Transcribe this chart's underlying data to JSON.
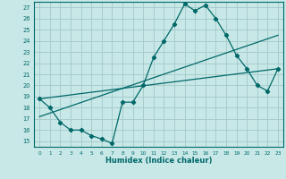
{
  "xlabel": "Humidex (Indice chaleur)",
  "bg_color": "#c8e8e8",
  "grid_color": "#a8cccc",
  "line_color": "#006868",
  "xlim": [
    -0.5,
    23.5
  ],
  "ylim": [
    14.5,
    27.5
  ],
  "xticks": [
    0,
    1,
    2,
    3,
    4,
    5,
    6,
    7,
    8,
    9,
    10,
    11,
    12,
    13,
    14,
    15,
    16,
    17,
    18,
    19,
    20,
    21,
    22,
    23
  ],
  "yticks": [
    15,
    16,
    17,
    18,
    19,
    20,
    21,
    22,
    23,
    24,
    25,
    26,
    27
  ],
  "line1_x": [
    0,
    1,
    2,
    3,
    4,
    5,
    6,
    7,
    8,
    9,
    10,
    11,
    12,
    13,
    14,
    15,
    16,
    17,
    18,
    19,
    20,
    21,
    22,
    23
  ],
  "line1_y": [
    18.8,
    18.0,
    16.7,
    16.0,
    16.0,
    15.5,
    15.2,
    14.8,
    18.5,
    18.5,
    20.0,
    22.5,
    24.0,
    25.5,
    27.3,
    26.7,
    27.2,
    26.0,
    24.5,
    22.7,
    21.5,
    20.0,
    19.5,
    21.5
  ],
  "line2_x": [
    0,
    23
  ],
  "line2_y": [
    17.2,
    24.5
  ],
  "line3_x": [
    0,
    23
  ],
  "line3_y": [
    18.8,
    21.5
  ]
}
